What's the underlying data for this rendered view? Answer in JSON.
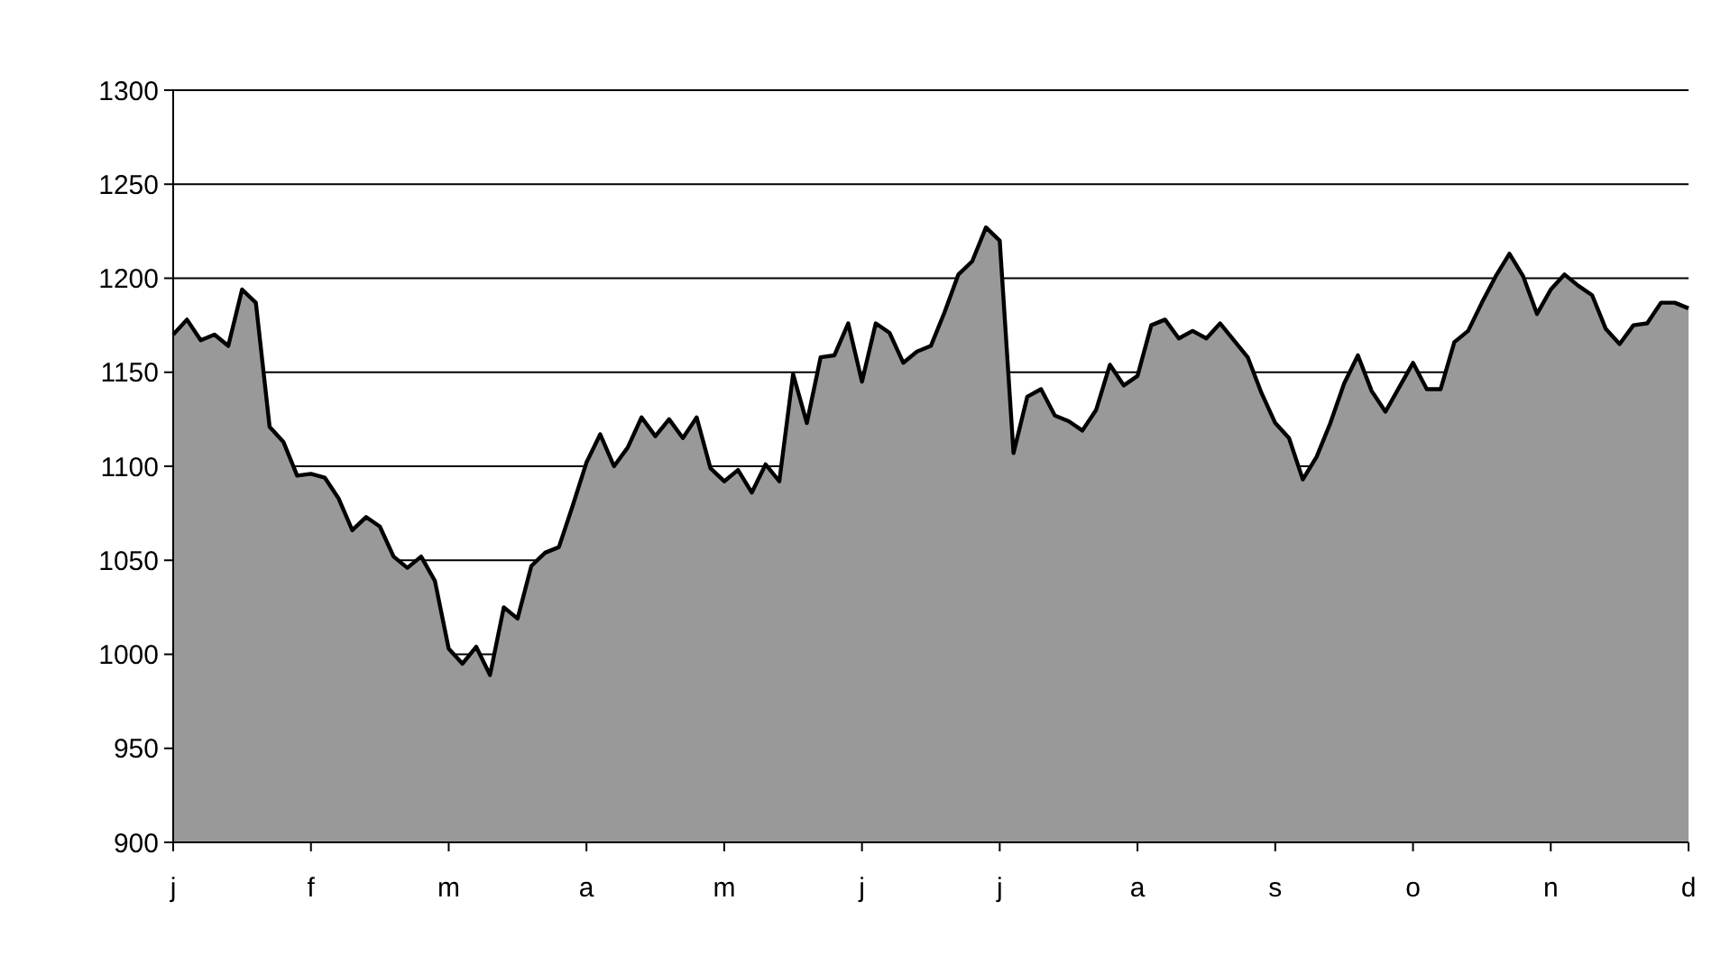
{
  "chart_data": {
    "type": "area",
    "grid": "y",
    "ylim": [
      900,
      1300
    ],
    "yticks": [
      900,
      950,
      1000,
      1050,
      1100,
      1150,
      1200,
      1250,
      1300
    ],
    "categories": [
      "j",
      null,
      null,
      null,
      null,
      null,
      null,
      null,
      null,
      null,
      "f",
      null,
      null,
      null,
      null,
      null,
      null,
      null,
      null,
      null,
      "m",
      null,
      null,
      null,
      null,
      null,
      null,
      null,
      null,
      null,
      "a",
      null,
      null,
      null,
      null,
      null,
      null,
      null,
      null,
      null,
      "m",
      null,
      null,
      null,
      null,
      null,
      null,
      null,
      null,
      null,
      "j",
      null,
      null,
      null,
      null,
      null,
      null,
      null,
      null,
      null,
      "j",
      null,
      null,
      null,
      null,
      null,
      null,
      null,
      null,
      null,
      "a",
      null,
      null,
      null,
      null,
      null,
      null,
      null,
      null,
      null,
      "s",
      null,
      null,
      null,
      null,
      null,
      null,
      null,
      null,
      null,
      "o",
      null,
      null,
      null,
      null,
      null,
      null,
      null,
      null,
      null,
      "n",
      null,
      null,
      null,
      null,
      null,
      null,
      null,
      null,
      null,
      "d"
    ],
    "series": [
      {
        "color": "#999999",
        "values": [
          1170,
          1178,
          1167,
          1170,
          1164,
          1194,
          1187,
          1121,
          1113,
          1095,
          1096,
          1094,
          1083,
          1066,
          1073,
          1068,
          1052,
          1046,
          1052,
          1039,
          1003,
          995,
          1004,
          989,
          1025,
          1019,
          1047,
          1054,
          1057,
          1079,
          1102,
          1117,
          1100,
          1110,
          1126,
          1116,
          1125,
          1115,
          1126,
          1099,
          1092,
          1098,
          1086,
          1101,
          1092,
          1149,
          1123,
          1158,
          1159,
          1176,
          1145,
          1176,
          1171,
          1155,
          1161,
          1164,
          1182,
          1202,
          1209,
          1227,
          1220,
          1107,
          1137,
          1141,
          1127,
          1124,
          1119,
          1130,
          1154,
          1143,
          1148,
          1175,
          1178,
          1168,
          1172,
          1168,
          1176,
          1167,
          1158,
          1139,
          1123,
          1115,
          1093,
          1105,
          1123,
          1144,
          1159,
          1140,
          1129,
          1142,
          1155,
          1141,
          1141,
          1166,
          1172,
          1187,
          1201,
          1213,
          1201,
          1181,
          1194,
          1202,
          1196,
          1191,
          1173,
          1165,
          1175,
          1176,
          1187,
          1187,
          1184
        ]
      }
    ]
  }
}
